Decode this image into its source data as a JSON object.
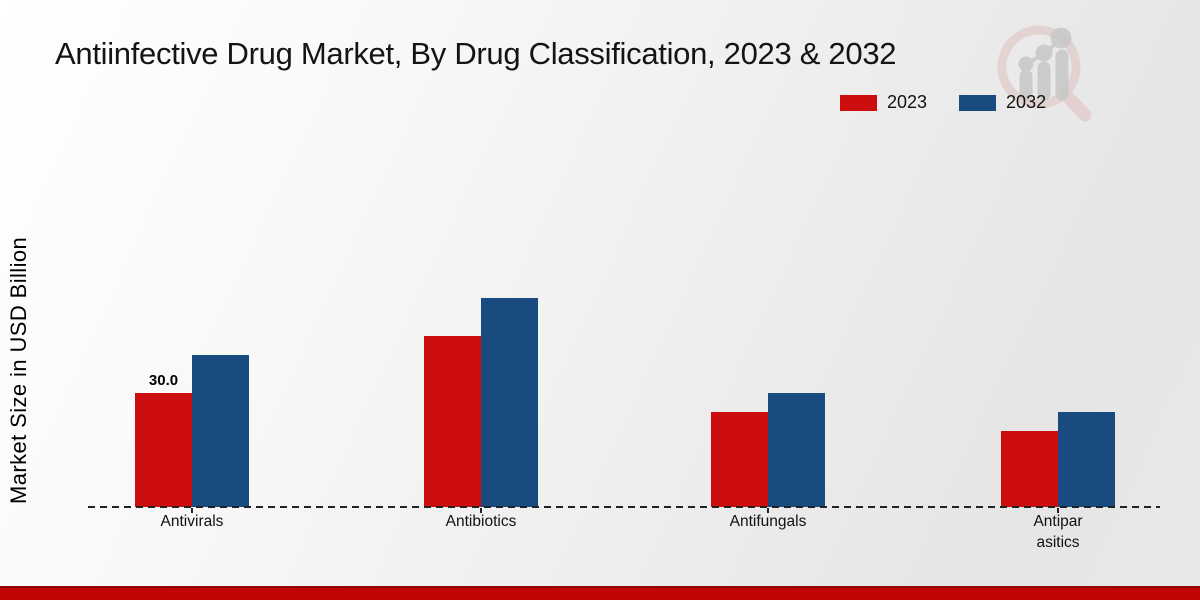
{
  "title": "Antiinfective Drug Market, By Drug Classification, 2023 & 2032",
  "legend": {
    "position": "top-right",
    "items": [
      {
        "label": "2023",
        "color": "#cc0e0e"
      },
      {
        "label": "2032",
        "color": "#194b81"
      }
    ]
  },
  "chart_data": {
    "type": "bar",
    "ylabel": "Market Size in USD Billion",
    "xlabel": "",
    "categories": [
      "Antivirals",
      "Antibiotics",
      "Antifungals",
      "Antipar\nasitics"
    ],
    "series": [
      {
        "name": "2023",
        "color": "#cc0e0e",
        "values": [
          30,
          45,
          25,
          20
        ]
      },
      {
        "name": "2032",
        "color": "#194b81",
        "values": [
          40,
          55,
          30,
          25
        ]
      }
    ],
    "annotations": [
      {
        "text": "30.0",
        "series_index": 0,
        "category_index": 0
      }
    ],
    "ylim": [
      0,
      60
    ],
    "grid": false,
    "x_axis_style": "dashed",
    "legend_position": "top-right"
  },
  "icons": {
    "watermark": "magnifier-growth-chart-logo"
  },
  "colors": {
    "accent_red": "#c10505",
    "footer_band": "#c10505",
    "axis": "#222222",
    "logo_ring": "#dfc0c0",
    "logo_gray": "#c7c7c7"
  }
}
